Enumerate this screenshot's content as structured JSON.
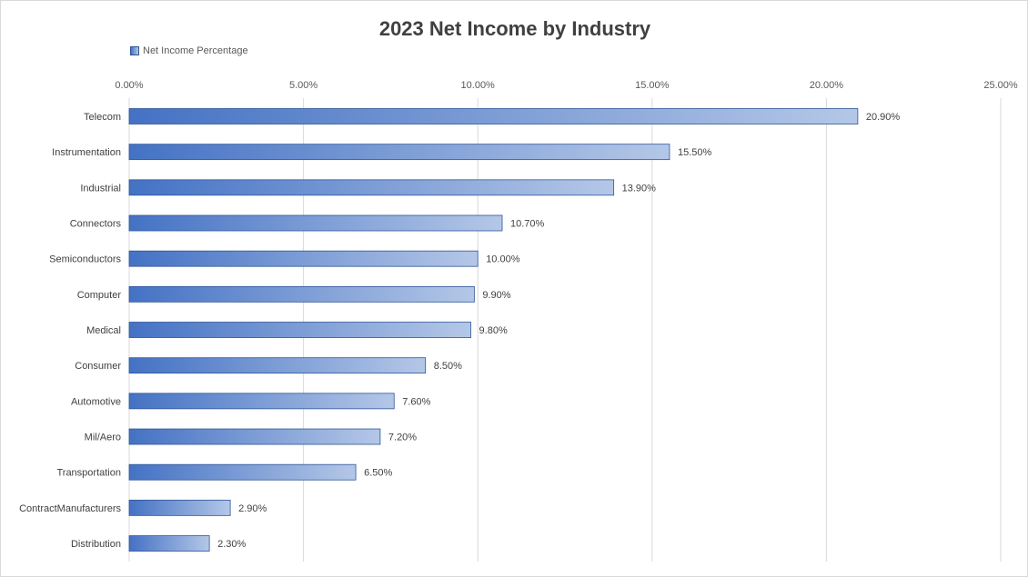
{
  "chart_data": {
    "type": "bar",
    "orientation": "horizontal",
    "title": "2023 Net Income by Industry",
    "categories": [
      "Telecom",
      "Instrumentation",
      "Industrial",
      "Connectors",
      "Semiconductors",
      "Computer",
      "Medical",
      "Consumer",
      "Automotive",
      "Mil/Aero",
      "Transportation",
      "ContractManufacturers",
      "Distribution"
    ],
    "series": [
      {
        "name": "Net Income Percentage",
        "values": [
          20.9,
          15.5,
          13.9,
          10.7,
          10.0,
          9.9,
          9.8,
          8.5,
          7.6,
          7.2,
          6.5,
          2.9,
          2.3
        ],
        "labels": [
          "20.90%",
          "15.50%",
          "13.90%",
          "10.70%",
          "10.00%",
          "9.90%",
          "9.80%",
          "8.50%",
          "7.60%",
          "7.20%",
          "6.50%",
          "2.90%",
          "2.30%"
        ]
      }
    ],
    "xlim": [
      0,
      25
    ],
    "x_ticks": [
      0,
      5,
      10,
      15,
      20,
      25
    ],
    "x_tick_labels": [
      "0.00%",
      "5.00%",
      "10.00%",
      "15.00%",
      "20.00%",
      "25.00%"
    ],
    "x_axis_position": "top",
    "grid": true,
    "legend_position": "top-left",
    "colors": {
      "bar_start": "#4472c4",
      "bar_end": "#b4c7e7",
      "bar_border": "#2f5597",
      "grid": "#d9d9d9",
      "text": "#404040"
    }
  }
}
